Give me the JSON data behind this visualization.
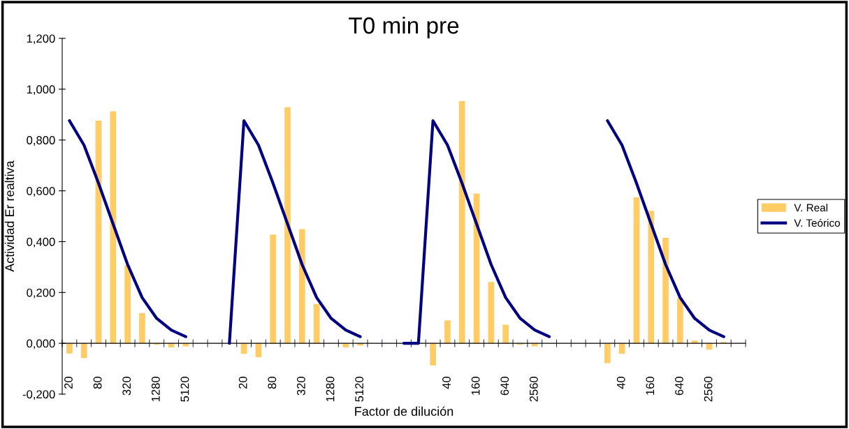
{
  "chart_data": {
    "type": "bar",
    "title": "T0 min pre",
    "xlabel": "Factor de dilución",
    "ylabel": "Actividad Er realtiva",
    "categories": [
      "20",
      null,
      "80",
      null,
      "320",
      null,
      "1280",
      null,
      "5120",
      null,
      null,
      null,
      "20",
      null,
      "80",
      null,
      "320",
      null,
      "1280",
      null,
      "5120",
      null,
      null,
      null,
      null,
      null,
      "40",
      null,
      "160",
      null,
      "640",
      null,
      "2560",
      null,
      null,
      null,
      null,
      null,
      "40",
      null,
      "160",
      null,
      "640",
      null,
      "2560",
      null,
      null
    ],
    "series": [
      {
        "name": "V. Real",
        "color": "#ffcc66",
        "values": [
          -0.04,
          -0.058,
          0.876,
          0.913,
          0.307,
          0.119,
          -0.005,
          -0.016,
          -0.012,
          null,
          null,
          null,
          -0.041,
          -0.055,
          0.428,
          0.929,
          0.449,
          0.154,
          null,
          -0.016,
          -0.009,
          null,
          null,
          null,
          null,
          -0.087,
          0.09,
          0.953,
          0.589,
          0.241,
          0.073,
          -0.005,
          -0.012,
          null,
          null,
          null,
          null,
          -0.078,
          -0.041,
          0.574,
          0.521,
          0.415,
          0.179,
          0.011,
          -0.025,
          0.005,
          null
        ]
      },
      {
        "name": "V. Teórico",
        "type": "line",
        "color": "#000080",
        "values": [
          0.876,
          0.78,
          0.63,
          0.47,
          0.31,
          0.18,
          0.098,
          0.052,
          0.026,
          null,
          null,
          0,
          0.876,
          0.78,
          0.63,
          0.47,
          0.31,
          0.18,
          0.098,
          0.052,
          0.026,
          null,
          null,
          0,
          0,
          0.876,
          0.78,
          0.63,
          0.47,
          0.31,
          0.18,
          0.098,
          0.052,
          0.026,
          null,
          null,
          null,
          0.876,
          0.78,
          0.63,
          0.47,
          0.31,
          0.18,
          0.098,
          0.052,
          0.026,
          null
        ]
      }
    ],
    "ylim": [
      -0.2,
      1.2
    ],
    "yticks": [
      {
        "value": -0.2,
        "label": "-0,200"
      },
      {
        "value": 0,
        "label": "0,000"
      },
      {
        "value": 0.2,
        "label": "0,200"
      },
      {
        "value": 0.4,
        "label": "0,400"
      },
      {
        "value": 0.6,
        "label": "0,600"
      },
      {
        "value": 0.8,
        "label": "0,800"
      },
      {
        "value": 1.0,
        "label": "1,000"
      },
      {
        "value": 1.2,
        "label": "1,200"
      }
    ],
    "legend": "right",
    "marker": "none",
    "line_style": "solid"
  }
}
